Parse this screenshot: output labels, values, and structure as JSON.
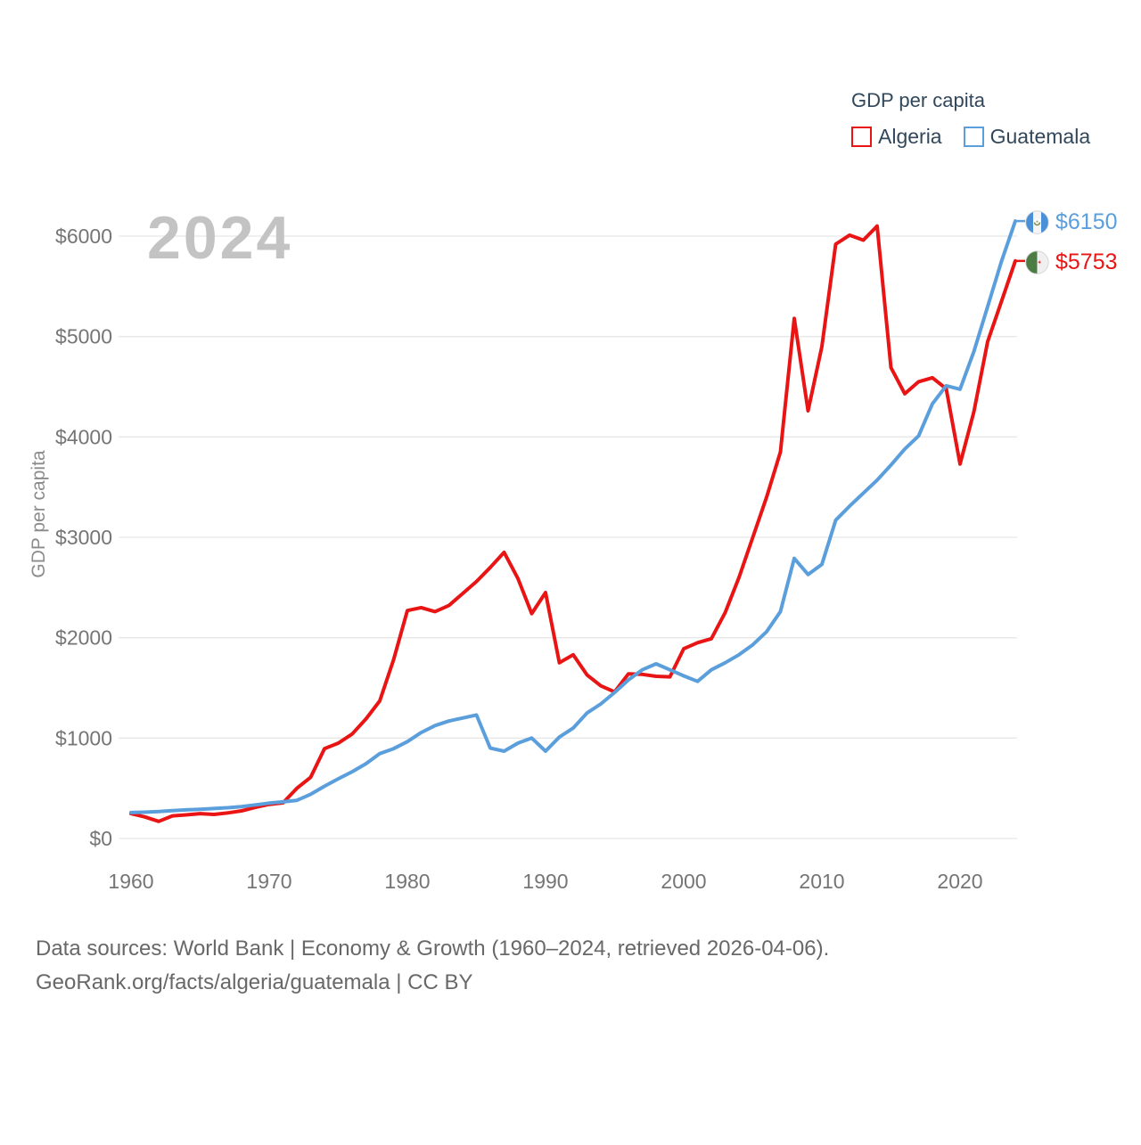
{
  "chart": {
    "watermark": "2024",
    "ylabel": "GDP per capita"
  },
  "legend": {
    "title": "GDP per capita",
    "items": [
      {
        "label": "Algeria",
        "color": "#e91414"
      },
      {
        "label": "Guatemala",
        "color": "#5b9edc"
      }
    ]
  },
  "end_labels": {
    "guatemala": {
      "value": "$6150",
      "flag": "guatemala-flag-icon"
    },
    "algeria": {
      "value": "$5753",
      "flag": "algeria-flag-icon"
    }
  },
  "source": {
    "line1": "Data sources: World Bank | Economy & Growth (1960–2024, retrieved 2026-04-06).",
    "line2": "GeoRank.org/facts/algeria/guatemala | CC BY"
  },
  "chart_data": {
    "type": "line",
    "title": "GDP per capita",
    "xlabel": "",
    "ylabel": "GDP per capita",
    "ytick_prefix": "$",
    "yticks": [
      0,
      1000,
      2000,
      3000,
      4000,
      5000,
      6000
    ],
    "xticks": [
      1960,
      1970,
      1980,
      1990,
      2000,
      2010,
      2020
    ],
    "ylim": [
      0,
      6400
    ],
    "grid": "horizontal",
    "legend_position": "top-right",
    "x": [
      1960,
      1961,
      1962,
      1963,
      1964,
      1965,
      1966,
      1967,
      1968,
      1969,
      1970,
      1971,
      1972,
      1973,
      1974,
      1975,
      1976,
      1977,
      1978,
      1979,
      1980,
      1981,
      1982,
      1983,
      1984,
      1985,
      1986,
      1987,
      1988,
      1989,
      1990,
      1991,
      1992,
      1993,
      1994,
      1995,
      1996,
      1997,
      1998,
      1999,
      2000,
      2001,
      2002,
      2003,
      2004,
      2005,
      2006,
      2007,
      2008,
      2009,
      2010,
      2011,
      2012,
      2013,
      2014,
      2015,
      2016,
      2017,
      2018,
      2019,
      2020,
      2021,
      2022,
      2023,
      2024
    ],
    "series": [
      {
        "id": "algeria",
        "name": "Algeria",
        "color": "#e91414",
        "end_label": "$5753",
        "values": [
          248,
          215,
          170,
          225,
          235,
          248,
          240,
          255,
          275,
          310,
          340,
          355,
          500,
          610,
          895,
          950,
          1040,
          1190,
          1370,
          1780,
          2270,
          2300,
          2260,
          2320,
          2440,
          2560,
          2700,
          2850,
          2590,
          2240,
          2450,
          1750,
          1830,
          1630,
          1520,
          1460,
          1640,
          1635,
          1615,
          1610,
          1890,
          1950,
          1990,
          2250,
          2600,
          3000,
          3400,
          3850,
          5180,
          4260,
          4900,
          5920,
          6010,
          5960,
          6100,
          4690,
          4430,
          4550,
          4590,
          4480,
          3730,
          4250,
          4950,
          5350,
          5753
        ]
      },
      {
        "id": "guatemala",
        "name": "Guatemala",
        "color": "#5b9edc",
        "end_label": "$6150",
        "values": [
          258,
          262,
          268,
          278,
          285,
          290,
          298,
          306,
          318,
          335,
          352,
          365,
          380,
          440,
          520,
          595,
          665,
          745,
          845,
          895,
          965,
          1055,
          1125,
          1170,
          1200,
          1230,
          900,
          870,
          950,
          1000,
          870,
          1010,
          1100,
          1250,
          1340,
          1455,
          1580,
          1680,
          1740,
          1680,
          1620,
          1565,
          1680,
          1750,
          1830,
          1930,
          2060,
          2260,
          2790,
          2630,
          2730,
          3170,
          3310,
          3440,
          3570,
          3720,
          3880,
          4010,
          4330,
          4510,
          4475,
          4850,
          5300,
          5750,
          6150
        ]
      }
    ]
  }
}
